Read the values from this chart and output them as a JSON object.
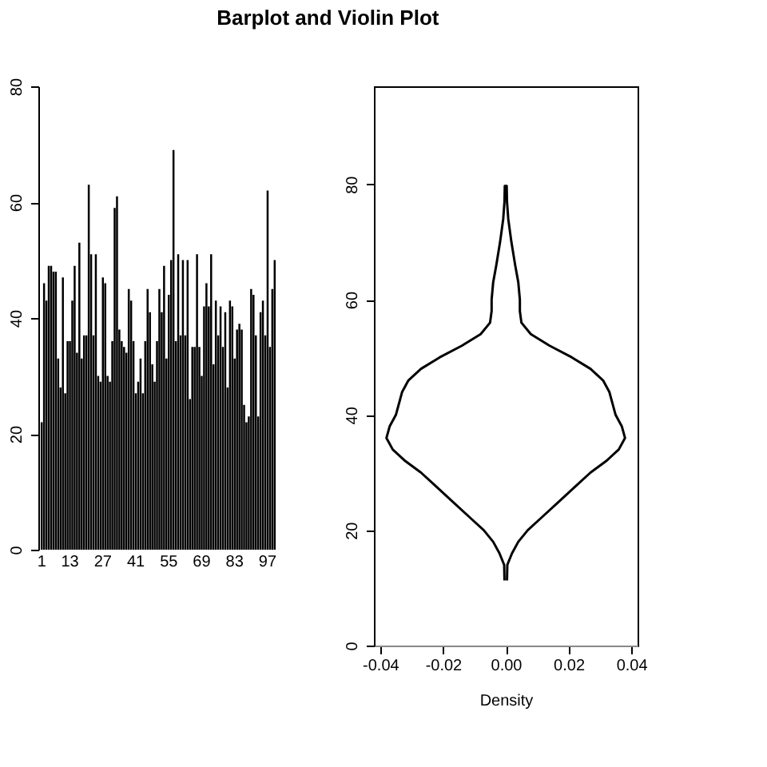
{
  "chart_data": [
    {
      "type": "bar",
      "title": "Barplot and Violin Plot",
      "color": "#000000",
      "ylim": [
        0,
        80
      ],
      "yticks": [
        0,
        20,
        40,
        60,
        80
      ],
      "grid": false,
      "categories": [
        "1",
        null,
        null,
        null,
        null,
        null,
        null,
        null,
        null,
        null,
        null,
        null,
        "13",
        null,
        null,
        null,
        null,
        null,
        null,
        null,
        null,
        null,
        null,
        null,
        null,
        null,
        "27",
        null,
        null,
        null,
        null,
        null,
        null,
        null,
        null,
        null,
        null,
        null,
        null,
        null,
        "41",
        null,
        null,
        null,
        null,
        null,
        null,
        null,
        null,
        null,
        null,
        null,
        null,
        null,
        "55",
        null,
        null,
        null,
        null,
        null,
        null,
        null,
        null,
        null,
        null,
        null,
        null,
        null,
        "69",
        null,
        null,
        null,
        null,
        null,
        null,
        null,
        null,
        null,
        null,
        null,
        null,
        null,
        "83",
        null,
        null,
        null,
        null,
        null,
        null,
        null,
        null,
        null,
        null,
        null,
        null,
        null,
        "97",
        null,
        null,
        null
      ],
      "values": [
        22,
        46,
        43,
        49,
        49,
        48,
        48,
        33,
        28,
        47,
        27,
        36,
        36,
        43,
        49,
        34,
        53,
        33,
        37,
        37,
        63,
        51,
        37,
        51,
        30,
        29,
        47,
        46,
        30,
        29,
        36,
        59,
        61,
        38,
        36,
        35,
        34,
        45,
        43,
        36,
        27,
        29,
        33,
        27,
        36,
        45,
        41,
        32,
        29,
        36,
        45,
        41,
        49,
        33,
        44,
        50,
        69,
        36,
        51,
        37,
        50,
        37,
        50,
        26,
        35,
        35,
        51,
        35,
        30,
        42,
        46,
        42,
        51,
        32,
        43,
        37,
        42,
        35,
        41,
        28,
        43,
        42,
        33,
        38,
        39,
        38,
        25,
        22,
        23,
        45,
        44,
        37,
        23,
        41,
        43,
        37,
        62,
        35,
        45,
        50
      ]
    },
    {
      "type": "line",
      "xlabel": "Density",
      "xlim": [
        -0.042,
        0.042
      ],
      "xticks": [
        {
          "value": -0.04,
          "label": "-0.04"
        },
        {
          "value": -0.02,
          "label": "-0.02"
        },
        {
          "value": 0,
          "label": "0.00"
        },
        {
          "value": 0.02,
          "label": "0.02"
        },
        {
          "value": 0.04,
          "label": "0.04"
        }
      ],
      "ylim": [
        0,
        97
      ],
      "yticks": [
        0,
        20,
        40,
        60,
        80
      ],
      "grid": false,
      "line_style": "solid",
      "marker": "none",
      "series": [
        {
          "color": "#000000",
          "x": [
            0.0004,
            0.0005,
            0.002,
            0.004,
            0.007,
            0.011,
            0.017,
            0.023,
            0.027,
            0.032,
            0.036,
            0.038,
            0.037,
            0.035,
            0.034,
            0.033,
            0.031,
            0.027,
            0.021,
            0.014,
            0.008,
            0.005,
            0.0045,
            0.0045,
            0.004,
            0.003,
            0.0018,
            0.0008,
            0.0004,
            0.0003,
            -0.0003,
            -0.0004,
            -0.0008,
            -0.0018,
            -0.003,
            -0.004,
            -0.0045,
            -0.0045,
            -0.005,
            -0.008,
            -0.014,
            -0.021,
            -0.027,
            -0.031,
            -0.033,
            -0.034,
            -0.035,
            -0.037,
            -0.038,
            -0.036,
            -0.032,
            -0.027,
            -0.023,
            -0.017,
            -0.011,
            -0.007,
            -0.004,
            -0.002,
            -0.0005,
            -0.0004
          ],
          "values": [
            11.3,
            14,
            16,
            18,
            20,
            22,
            25,
            28,
            30,
            32,
            34,
            36,
            38,
            40,
            42,
            44,
            46,
            48,
            50,
            52,
            54,
            56,
            58,
            60,
            63,
            66,
            70,
            74,
            77,
            79.7,
            79.7,
            77,
            74,
            70,
            66,
            63,
            60,
            58,
            56,
            54,
            52,
            50,
            48,
            46,
            44,
            42,
            40,
            38,
            36,
            34,
            32,
            30,
            28,
            25,
            22,
            20,
            18,
            16,
            14,
            11.3
          ]
        }
      ]
    }
  ]
}
